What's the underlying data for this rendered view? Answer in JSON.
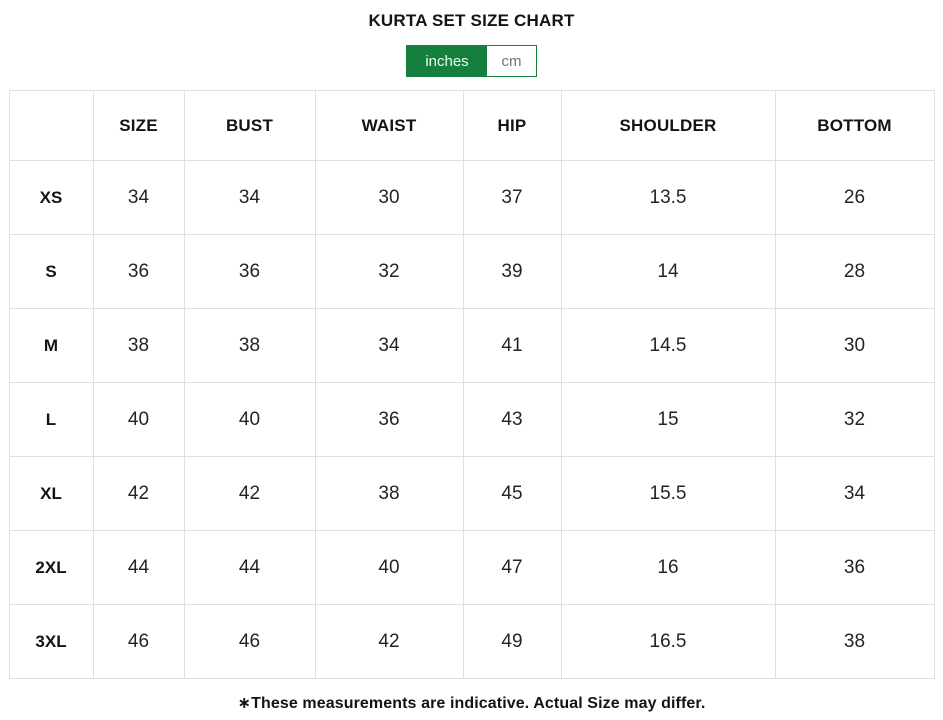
{
  "title": "KURTA SET SIZE CHART",
  "unit_toggle": {
    "options": [
      {
        "label": "inches",
        "active": true
      },
      {
        "label": "cm",
        "active": false
      }
    ]
  },
  "size_chart": {
    "columns": [
      "",
      "SIZE",
      "BUST",
      "WAIST",
      "HIP",
      "SHOULDER",
      "BOTTOM"
    ],
    "rows": [
      {
        "label": "XS",
        "values": [
          "34",
          "34",
          "30",
          "37",
          "13.5",
          "26"
        ]
      },
      {
        "label": "S",
        "values": [
          "36",
          "36",
          "32",
          "39",
          "14",
          "28"
        ]
      },
      {
        "label": "M",
        "values": [
          "38",
          "38",
          "34",
          "41",
          "14.5",
          "30"
        ]
      },
      {
        "label": "L",
        "values": [
          "40",
          "40",
          "36",
          "43",
          "15",
          "32"
        ]
      },
      {
        "label": "XL",
        "values": [
          "42",
          "42",
          "38",
          "45",
          "15.5",
          "34"
        ]
      },
      {
        "label": "2XL",
        "values": [
          "44",
          "44",
          "40",
          "47",
          "16",
          "36"
        ]
      },
      {
        "label": "3XL",
        "values": [
          "46",
          "46",
          "42",
          "49",
          "16.5",
          "38"
        ]
      }
    ]
  },
  "footnote": "∗These measurements are indicative. Actual Size may differ.",
  "colors": {
    "accent_green": "#15803d",
    "toggle_active_text": "#f0fdf4",
    "toggle_inactive_text": "#6b7280",
    "table_border": "#e0e0e0",
    "heading_text": "#141414",
    "value_text": "#212529"
  }
}
